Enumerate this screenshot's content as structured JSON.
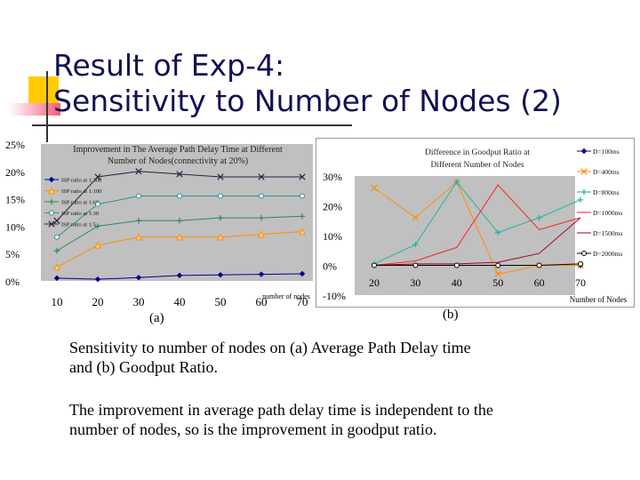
{
  "slide": {
    "title": "Result of Exp-4:\nSensitivity to Number of Nodes (2)",
    "caption1": "Sensitivity to number of nodes on (a) Average Path Delay time and (b) Goodput Ratio.",
    "caption2": "The improvement in average path delay time is independent to the number of nodes, so is the improvement in goodput ratio.",
    "label_a": "(a)",
    "label_b": "(b)"
  },
  "chart_data": [
    {
      "type": "line",
      "title": "Improvement in The Average Path Delay Time at Different Number of Nodes(connectivity at 20%)",
      "xlabel": "number of nodes",
      "ylabel": "",
      "categories": [
        10,
        20,
        30,
        40,
        50,
        60,
        70
      ],
      "y_ticks": [
        "0%",
        "5%",
        "10%",
        "15%",
        "20%",
        "25%"
      ],
      "ylim": [
        0,
        25
      ],
      "series": [
        {
          "name": "ISP ratio at 1:300",
          "color": "#00008b",
          "marker": "diamond",
          "values": [
            0.5,
            0.3,
            0.6,
            1.0,
            1.1,
            1.2,
            1.3
          ]
        },
        {
          "name": "ISP ratio at 1:100",
          "color": "#ff8c00",
          "marker": "triangle",
          "values": [
            2.5,
            6.5,
            8.0,
            8.0,
            8.0,
            8.5,
            9.0
          ]
        },
        {
          "name": "ISP ratio at 1:60",
          "color": "#2e8b57",
          "marker": "plus",
          "values": [
            5.5,
            10.0,
            11.0,
            11.0,
            11.5,
            11.5,
            11.8
          ]
        },
        {
          "name": "ISP ratio at 1:30",
          "color": "#2f8f8f",
          "marker": "circle",
          "values": [
            8.0,
            14.0,
            15.5,
            15.5,
            15.5,
            15.5,
            15.5
          ]
        },
        {
          "name": "ISP ratio at 1:5",
          "color": "#222244",
          "marker": "x",
          "values": [
            11.0,
            19.0,
            20.0,
            19.5,
            19.0,
            19.0,
            19.0
          ]
        }
      ]
    },
    {
      "type": "line",
      "title": "Difference in Goodput Ratio at Different Number of Nodes",
      "xlabel": "Number of Nodes",
      "ylabel": "",
      "categories": [
        20,
        30,
        40,
        50,
        60,
        70
      ],
      "y_ticks": [
        "-10%",
        "0%",
        "10%",
        "20%",
        "30%"
      ],
      "ylim": [
        -10,
        30
      ],
      "series": [
        {
          "name": "D=100ms",
          "color": "#00008b",
          "marker": "diamond",
          "values": [
            0,
            0,
            0,
            0,
            0,
            0
          ]
        },
        {
          "name": "D=400ms",
          "color": "#ff8c00",
          "marker": "x",
          "values": [
            26,
            16,
            28,
            -3,
            0,
            0
          ]
        },
        {
          "name": "D=800ms",
          "color": "#20b2aa",
          "marker": "plus",
          "values": [
            0.5,
            7,
            28,
            11,
            16,
            22
          ]
        },
        {
          "name": "D=1000ms",
          "color": "#ff2020",
          "marker": "none",
          "values": [
            0,
            1.5,
            6,
            27,
            12,
            16
          ]
        },
        {
          "name": "D=1500ms",
          "color": "#a0001e",
          "marker": "none",
          "values": [
            0,
            0.5,
            0.5,
            1,
            4,
            16
          ]
        },
        {
          "name": "D=2000ms",
          "color": "#000000",
          "marker": "circle",
          "values": [
            0,
            0,
            0,
            0,
            0,
            0.5
          ]
        }
      ]
    }
  ]
}
